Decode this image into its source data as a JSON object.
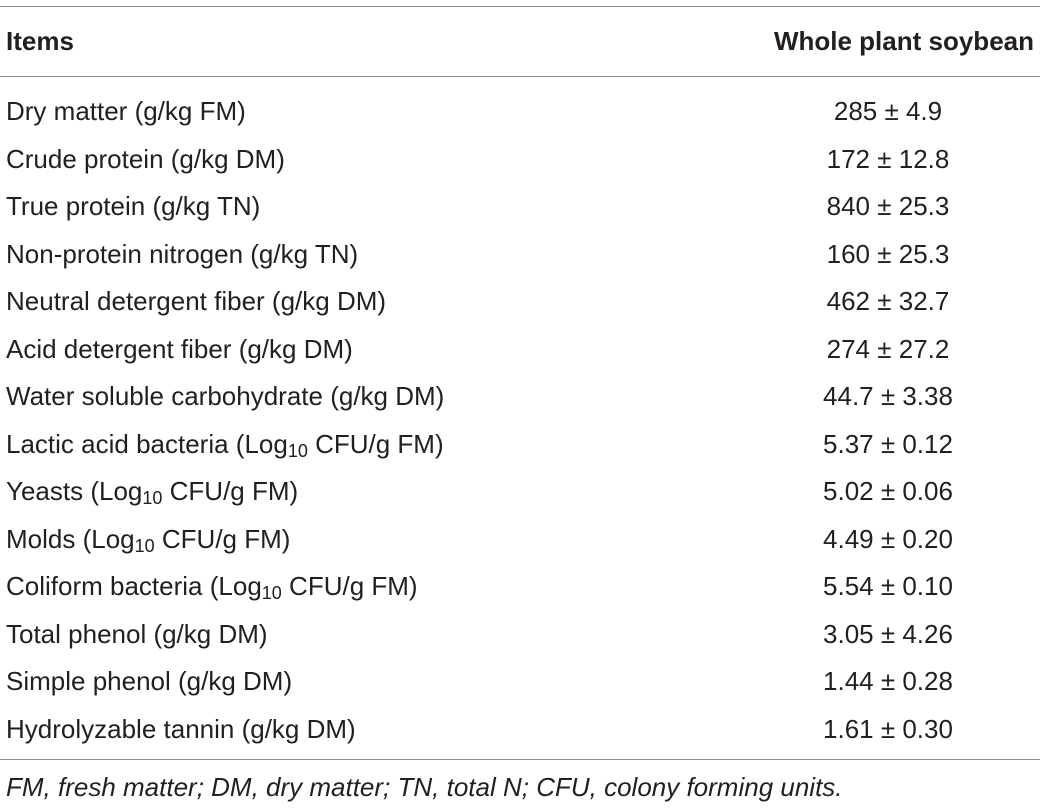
{
  "table": {
    "headers": {
      "items": "Items",
      "value": "Whole plant soybean"
    },
    "rows": [
      {
        "prefix": "Dry matter (g/kg FM)",
        "sub": "",
        "suffix": "",
        "value": "285 ± 4.9"
      },
      {
        "prefix": "Crude protein (g/kg DM)",
        "sub": "",
        "suffix": "",
        "value": "172 ± 12.8"
      },
      {
        "prefix": "True protein (g/kg TN)",
        "sub": "",
        "suffix": "",
        "value": "840 ± 25.3"
      },
      {
        "prefix": "Non-protein nitrogen (g/kg TN)",
        "sub": "",
        "suffix": "",
        "value": "160 ± 25.3"
      },
      {
        "prefix": "Neutral detergent fiber (g/kg DM)",
        "sub": "",
        "suffix": "",
        "value": "462 ± 32.7"
      },
      {
        "prefix": "Acid detergent fiber (g/kg DM)",
        "sub": "",
        "suffix": "",
        "value": "274 ± 27.2"
      },
      {
        "prefix": "Water soluble carbohydrate (g/kg DM)",
        "sub": "",
        "suffix": "",
        "value": "44.7 ± 3.38"
      },
      {
        "prefix": "Lactic acid bacteria (Log",
        "sub": "10",
        "suffix": " CFU/g FM)",
        "value": "5.37 ± 0.12"
      },
      {
        "prefix": "Yeasts (Log",
        "sub": "10",
        "suffix": " CFU/g FM)",
        "value": "5.02 ± 0.06"
      },
      {
        "prefix": "Molds (Log",
        "sub": "10",
        "suffix": " CFU/g FM)",
        "value": "4.49 ± 0.20"
      },
      {
        "prefix": "Coliform bacteria (Log",
        "sub": "10",
        "suffix": " CFU/g FM)",
        "value": "5.54 ± 0.10"
      },
      {
        "prefix": "Total phenol (g/kg DM)",
        "sub": "",
        "suffix": "",
        "value": "3.05 ± 4.26"
      },
      {
        "prefix": "Simple phenol (g/kg DM)",
        "sub": "",
        "suffix": "",
        "value": "1.44 ± 0.28"
      },
      {
        "prefix": "Hydrolyzable tannin (g/kg DM)",
        "sub": "",
        "suffix": "",
        "value": "1.61 ± 0.30"
      }
    ],
    "footnote": "FM, fresh matter; DM, dry matter; TN, total N; CFU, colony forming units."
  }
}
